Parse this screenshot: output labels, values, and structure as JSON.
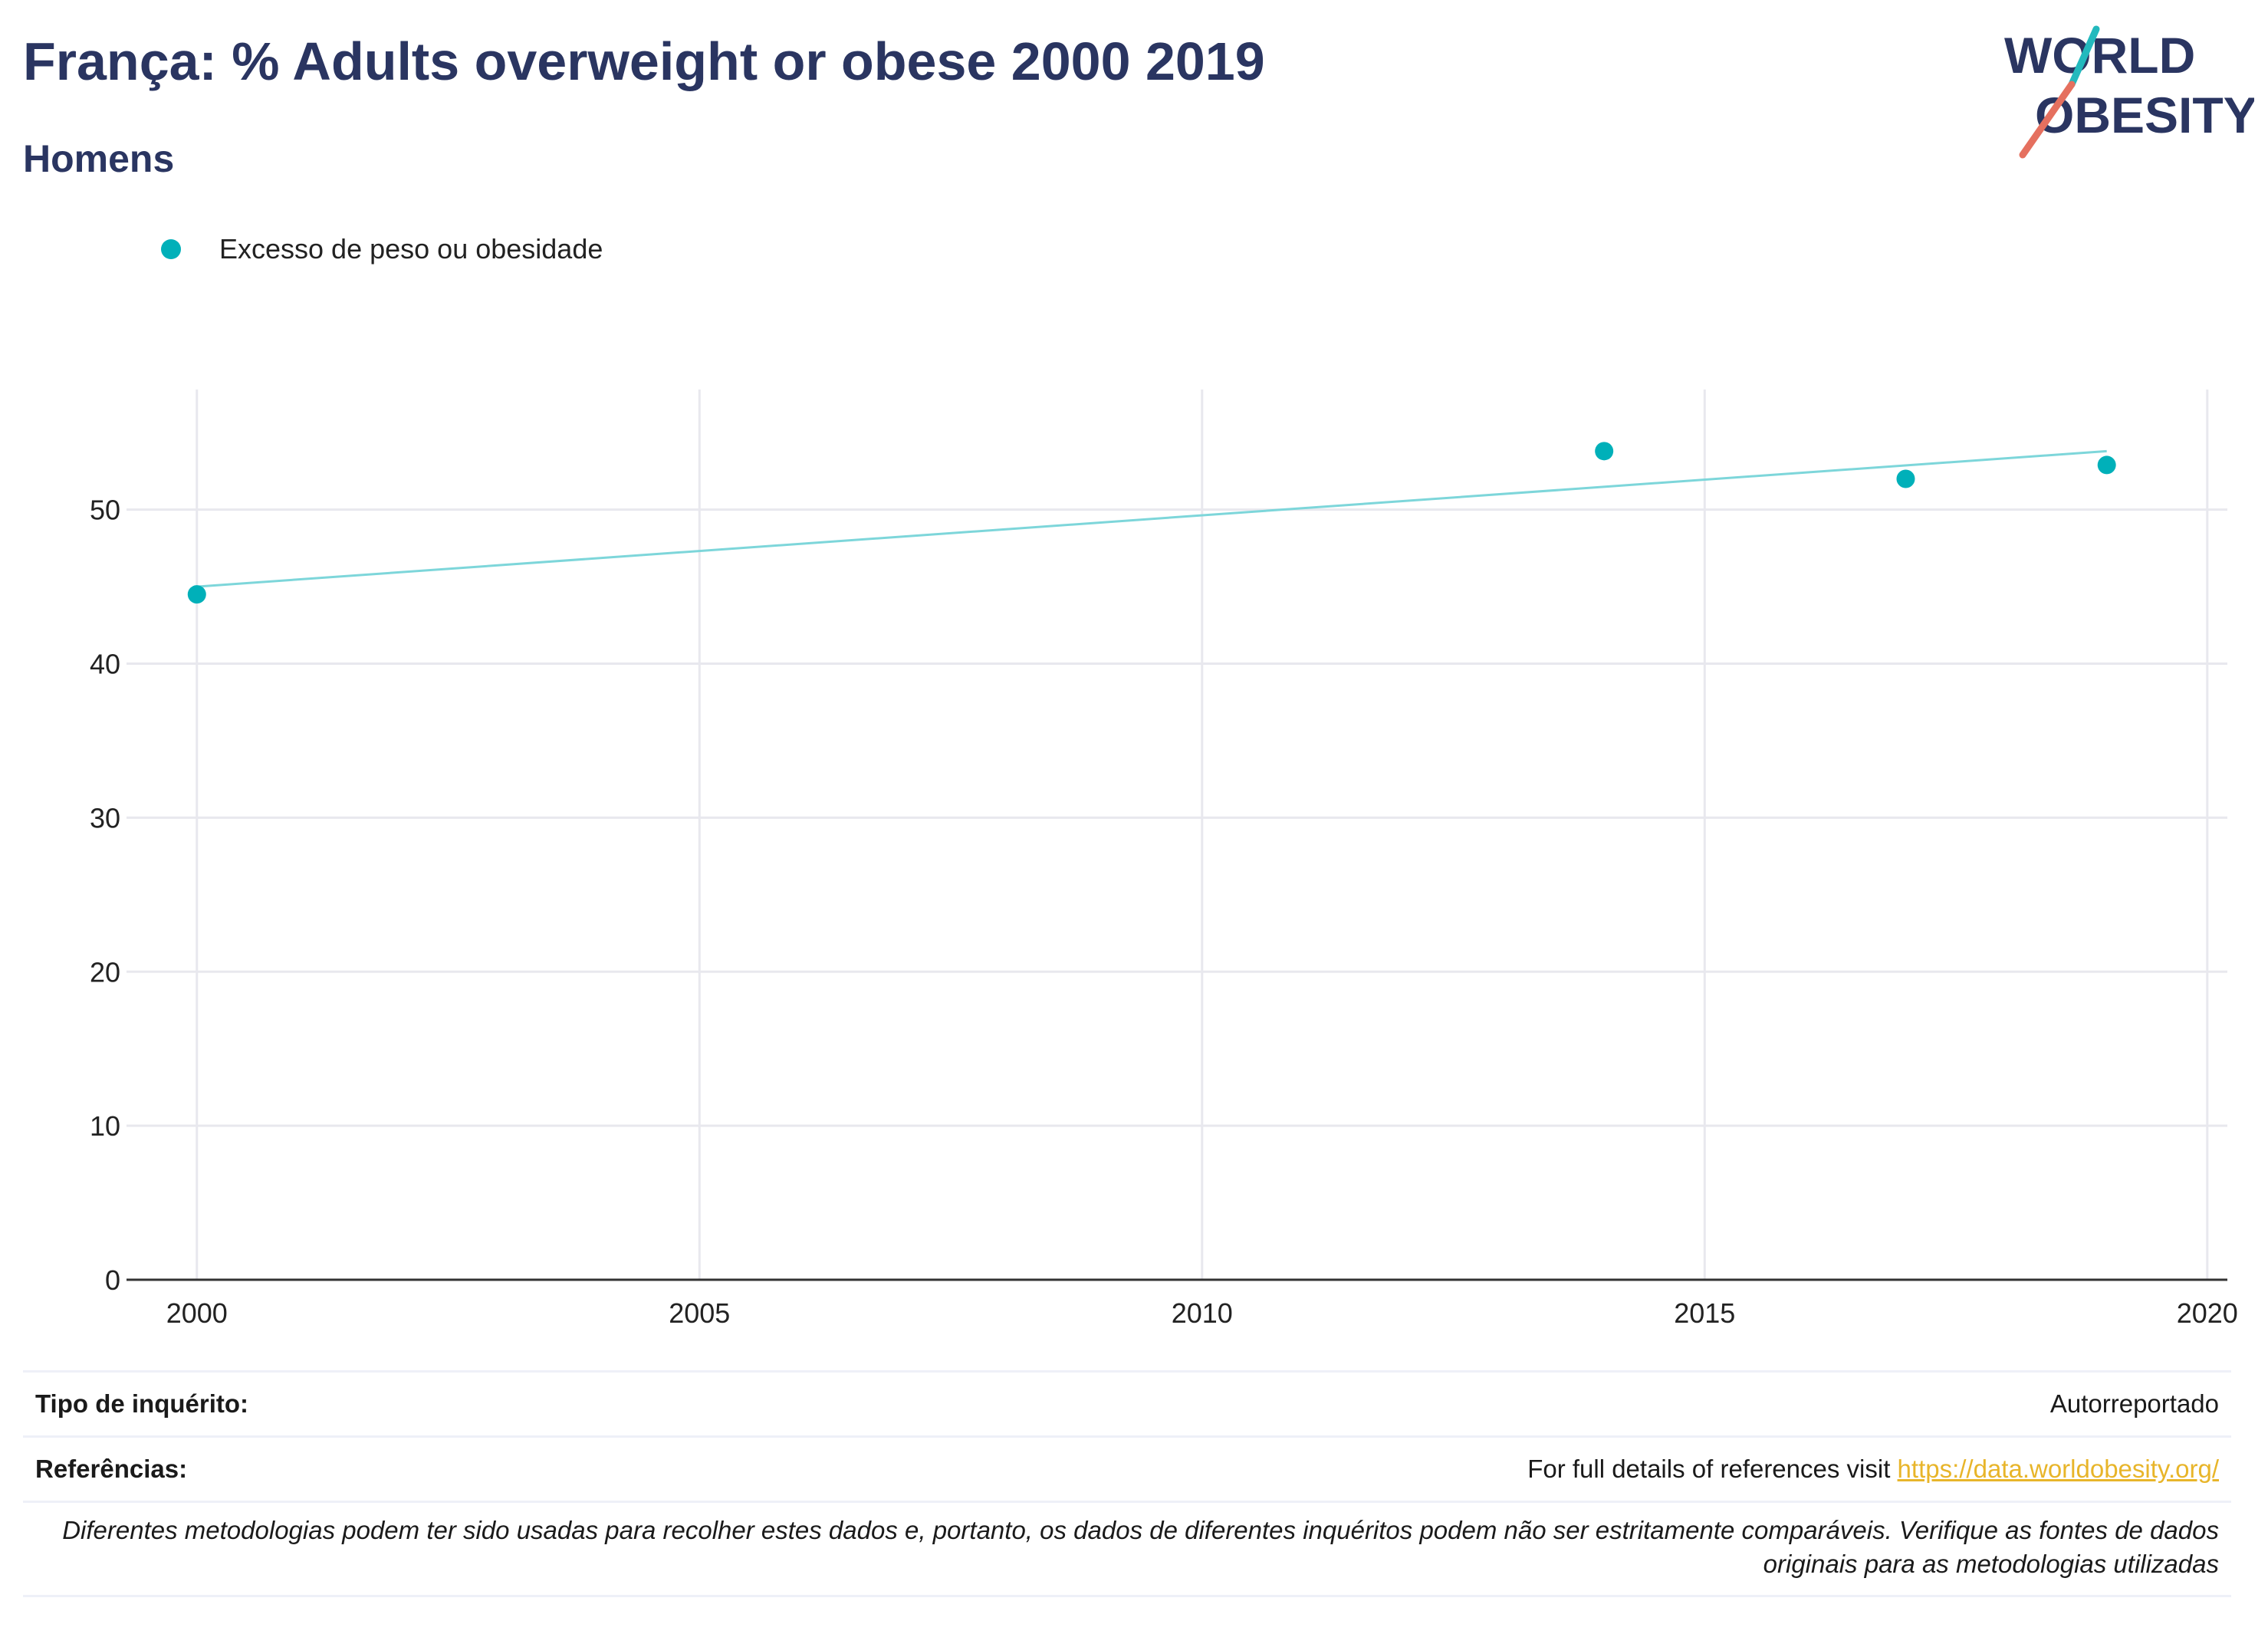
{
  "header": {
    "title": "França: % Adults overweight or obese 2000 2019",
    "subtitle": "Homens"
  },
  "logo": {
    "line1": "WORLD",
    "line2": "OBESITY",
    "accent_teal": "#23b9bd",
    "accent_red": "#e5705f",
    "text_color": "#2a3561"
  },
  "colors": {
    "series": "#00b0b9",
    "trend": "#7dd6da",
    "grid": "#e8e8ee",
    "axis": "#333333"
  },
  "chart_data": {
    "type": "scatter",
    "series": [
      {
        "name": "Excesso de peso ou obesidade",
        "x": [
          2000,
          2014,
          2017,
          2019
        ],
        "y": [
          44.5,
          53.8,
          52.0,
          52.9
        ]
      }
    ],
    "trendline": {
      "x": [
        2000,
        2019
      ],
      "y": [
        45.0,
        53.8
      ]
    },
    "xlim": [
      1999.3,
      2020.2
    ],
    "ylim": [
      0,
      57.8
    ],
    "xticks": [
      2000,
      2005,
      2010,
      2015,
      2020
    ],
    "yticks": [
      0,
      10,
      20,
      30,
      40,
      50
    ],
    "grid": true,
    "legend": "top-left"
  },
  "footer": {
    "survey_label": "Tipo de inquérito:",
    "survey_value": "Autorreportado",
    "refs_label": "Referências:",
    "refs_text": "For full details of references visit",
    "refs_link": "https://data.worldobesity.org/",
    "note": "Diferentes metodologias podem ter sido usadas para recolher estes dados e, portanto, os dados de diferentes inquéritos podem não ser estritamente comparáveis. Verifique as fontes de dados originais para as metodologias utilizadas"
  }
}
